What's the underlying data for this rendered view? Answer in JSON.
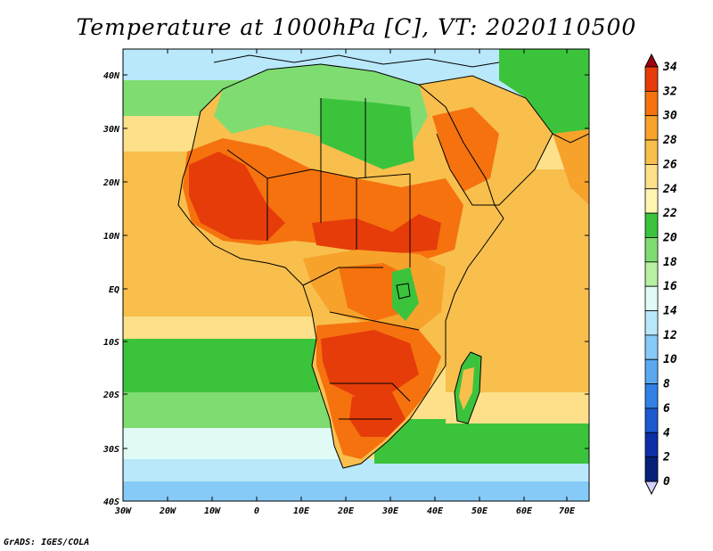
{
  "title": "Temperature at 1000hPa [C], VT: 2020110500",
  "credit": "GrADS: IGES/COLA",
  "lat_labels": [
    "40N",
    "30N",
    "20N",
    "10N",
    "EQ",
    "10S",
    "20S",
    "30S",
    "40S"
  ],
  "lon_labels": [
    "30W",
    "20W",
    "10W",
    "0",
    "10E",
    "20E",
    "30E",
    "40E",
    "50E",
    "60E",
    "70E"
  ],
  "colorbar": {
    "levels": [
      "34",
      "32",
      "30",
      "28",
      "26",
      "24",
      "22",
      "20",
      "18",
      "16",
      "14",
      "12",
      "10",
      "8",
      "6",
      "4",
      "2",
      "0"
    ],
    "colors": [
      "#a0000f",
      "#e63c0a",
      "#f5720f",
      "#f7a22b",
      "#f8bf4d",
      "#fde089",
      "#fff6b0",
      "#3cc33c",
      "#7fdc70",
      "#b7f0a0",
      "#e0fbf6",
      "#b9e8fb",
      "#86cbf7",
      "#5aa9f0",
      "#3181e6",
      "#1c5ad0",
      "#0c2fa8",
      "#06207a",
      "#d4d0ff"
    ]
  },
  "palette": {
    "ocean_cool": "#b9e8fb",
    "ocean_pale": "#e0fbf6",
    "ocean_warm": "#f8bf4d",
    "ocean_mild": "#fde089",
    "green": "#3cc33c",
    "light_green": "#7fdc70",
    "orange": "#f5720f",
    "red": "#e63c0a",
    "blue": "#86cbf7"
  }
}
